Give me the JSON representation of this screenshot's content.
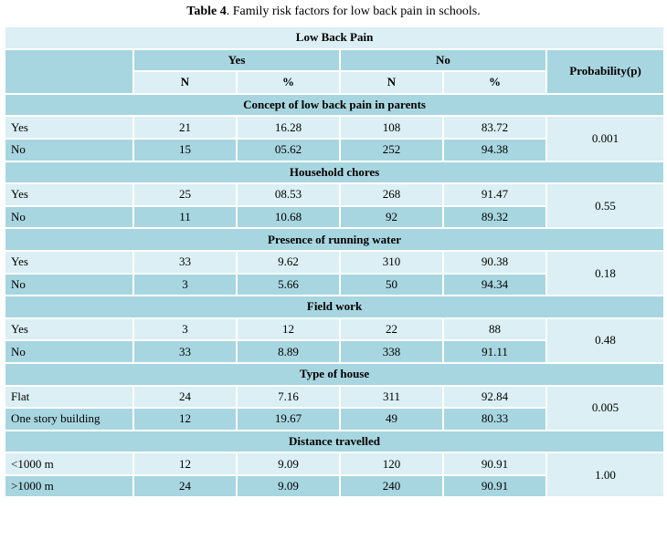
{
  "caption": {
    "label": "Table 4",
    "text": ". Family risk factors for low back pain in schools."
  },
  "header": {
    "title": "Low Back Pain",
    "yes": "Yes",
    "no": "No",
    "probability": "Probability(p)",
    "n": "N",
    "pct": "%"
  },
  "sections": [
    {
      "title": "Concept of low back pain in parents",
      "p": "0.001",
      "rows": [
        {
          "label": "Yes",
          "yes_n": "21",
          "yes_pct": "16.28",
          "no_n": "108",
          "no_pct": "83.72"
        },
        {
          "label": "No",
          "yes_n": "15",
          "yes_pct": "05.62",
          "no_n": "252",
          "no_pct": "94.38"
        }
      ]
    },
    {
      "title": "Household chores",
      "p": "0.55",
      "rows": [
        {
          "label": "Yes",
          "yes_n": "25",
          "yes_pct": "08.53",
          "no_n": "268",
          "no_pct": "91.47"
        },
        {
          "label": "No",
          "yes_n": "11",
          "yes_pct": "10.68",
          "no_n": "92",
          "no_pct": "89.32"
        }
      ]
    },
    {
      "title": "Presence of running water",
      "p": "0.18",
      "rows": [
        {
          "label": "Yes",
          "yes_n": "33",
          "yes_pct": "9.62",
          "no_n": "310",
          "no_pct": "90.38"
        },
        {
          "label": "No",
          "yes_n": "3",
          "yes_pct": "5.66",
          "no_n": "50",
          "no_pct": "94.34"
        }
      ]
    },
    {
      "title": "Field work",
      "p": "0.48",
      "rows": [
        {
          "label": "Yes",
          "yes_n": "3",
          "yes_pct": "12",
          "no_n": "22",
          "no_pct": "88"
        },
        {
          "label": "No",
          "yes_n": "33",
          "yes_pct": "8.89",
          "no_n": "338",
          "no_pct": "91.11"
        }
      ]
    },
    {
      "title": "Type of house",
      "p": "0.005",
      "rows": [
        {
          "label": "Flat",
          "yes_n": "24",
          "yes_pct": "7.16",
          "no_n": "311",
          "no_pct": "92.84"
        },
        {
          "label": "One story building",
          "yes_n": "12",
          "yes_pct": "19.67",
          "no_n": "49",
          "no_pct": "80.33"
        }
      ]
    },
    {
      "title": "Distance travelled",
      "p": "1.00",
      "rows": [
        {
          "label": "<1000 m",
          "yes_n": "12",
          "yes_pct": "9.09",
          "no_n": "120",
          "no_pct": "90.91"
        },
        {
          "label": ">1000 m",
          "yes_n": "24",
          "yes_pct": "9.09",
          "no_n": "240",
          "no_pct": "90.91"
        }
      ]
    }
  ]
}
